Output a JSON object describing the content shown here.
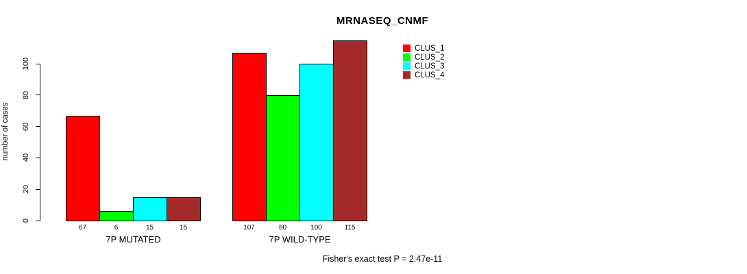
{
  "chart_data": {
    "type": "bar",
    "title": "MRNASEQ_CNMF",
    "ylabel": "number of cases",
    "xlabel": "",
    "categories": [
      "7P MUTATED",
      "7P WILD-TYPE"
    ],
    "series": [
      {
        "name": "CLUS_1",
        "color": "#FF0000",
        "values": [
          67,
          107
        ]
      },
      {
        "name": "CLUS_2",
        "color": "#00FF00",
        "values": [
          6,
          80
        ]
      },
      {
        "name": "CLUS_3",
        "color": "#00FFFF",
        "values": [
          15,
          100
        ]
      },
      {
        "name": "CLUS_4",
        "color": "#A52A2A",
        "values": [
          15,
          115
        ]
      }
    ],
    "bar_value_labels": [
      [
        "67",
        "6",
        "15",
        "15"
      ],
      [
        "107",
        "80",
        "100",
        "115"
      ]
    ],
    "yticks": [
      "0",
      "20",
      "40",
      "60",
      "80",
      "100"
    ],
    "ylim": [
      0,
      100
    ],
    "grid": false,
    "legend_position": "top-right",
    "annotation": "Fisher's exact test P = 2.47e-11"
  }
}
